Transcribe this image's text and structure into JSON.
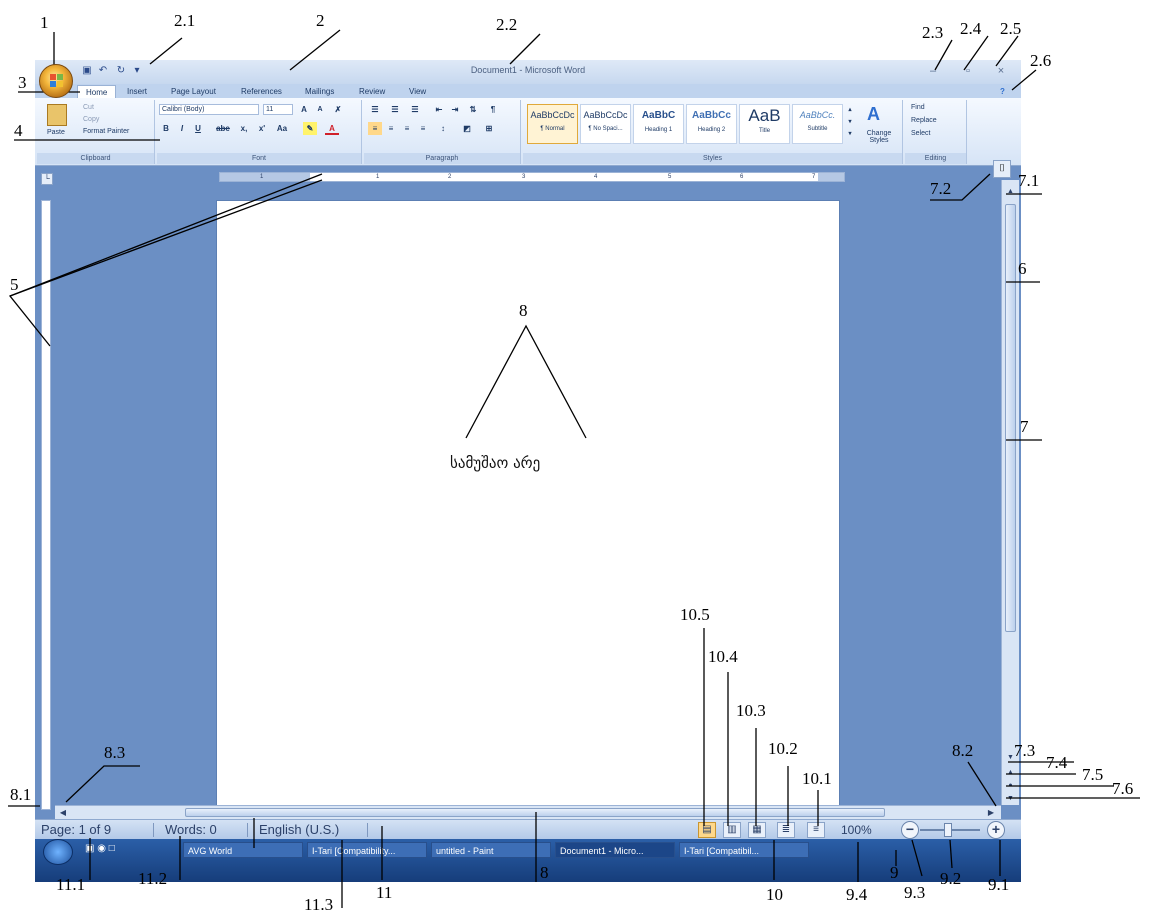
{
  "window": {
    "title": "Document1 - Microsoft Word"
  },
  "colors": {
    "accent": "#6b8fc4",
    "office_button": "#f4b73c",
    "ribbon": "#dbe7f7",
    "taskbar": "#1f4e96"
  },
  "quick_access": {
    "save_icon": "floppy-disk-icon",
    "undo_icon": "undo-icon",
    "redo_icon": "redo-icon",
    "more_icon": "dropdown-icon"
  },
  "tabs": [
    "Home",
    "Insert",
    "Page Layout",
    "References",
    "Mailings",
    "Review",
    "View"
  ],
  "ribbon": {
    "clipboard": {
      "paste": "Paste",
      "cut": "Cut",
      "copy": "Copy",
      "format_painter": "Format Painter",
      "label": "Clipboard"
    },
    "font": {
      "family": "Calibri (Body)",
      "size": "11",
      "grow": "A",
      "shrink": "A",
      "bold": "B",
      "italic": "I",
      "underline": "U",
      "strike": "abe",
      "subscript": "x,",
      "superscript": "x'",
      "change_case": "Aa",
      "label": "Font"
    },
    "paragraph": {
      "label": "Paragraph"
    },
    "styles": {
      "items": [
        {
          "sample": "AaBbCcDc",
          "name": "¶ Normal"
        },
        {
          "sample": "AaBbCcDc",
          "name": "¶ No Spaci..."
        },
        {
          "sample": "AaBbC",
          "name": "Heading 1"
        },
        {
          "sample": "AaBbCc",
          "name": "Heading 2"
        },
        {
          "sample": "AaB",
          "name": "Title"
        },
        {
          "sample": "AaBbCc.",
          "name": "Subtitle"
        }
      ],
      "change_styles": "Change Styles",
      "label": "Styles"
    },
    "editing": {
      "find": "Find",
      "replace": "Replace",
      "select": "Select",
      "label": "Editing"
    }
  },
  "ruler": {
    "numbers": [
      "1",
      "1",
      "2",
      "3",
      "4",
      "5",
      "6",
      "7"
    ]
  },
  "document": {
    "text": "სამუშაო არე"
  },
  "status": {
    "page": "Page: 1 of 9",
    "words": "Words: 0",
    "language": "English (U.S.)",
    "zoom": "100%"
  },
  "taskbar": {
    "items": [
      "AVG World",
      "I-Tari [Compatibility...",
      "untitled - Paint",
      "Document1 - Micro...",
      "I-Tari [Compatibil..."
    ]
  },
  "annotations": {
    "a1": "1",
    "a2": "2",
    "a2_1": "2.1",
    "a2_2": "2.2",
    "a2_3": "2.3",
    "a2_4": "2.4",
    "a2_5": "2.5",
    "a2_6": "2.6",
    "a3": "3",
    "a4": "4",
    "a5": "5",
    "a6": "6",
    "a7": "7",
    "a7_1": "7.1",
    "a7_2": "7.2",
    "a7_3": "7.3",
    "a7_4": "7.4",
    "a7_5": "7.5",
    "a7_6": "7.6",
    "a8_top": "8",
    "a8_bottom": "8",
    "a8_1": "8.1",
    "a8_2": "8.2",
    "a8_3": "8.3",
    "a9": "9",
    "a9_1": "9.1",
    "a9_2": "9.2",
    "a9_3": "9.3",
    "a9_4": "9.4",
    "a10": "10",
    "a10_1": "10.1",
    "a10_2": "10.2",
    "a10_3": "10.3",
    "a10_4": "10.4",
    "a10_5": "10.5",
    "a11": "11",
    "a11_1": "11.1",
    "a11_2": "11.2",
    "a11_3": "11.3"
  }
}
